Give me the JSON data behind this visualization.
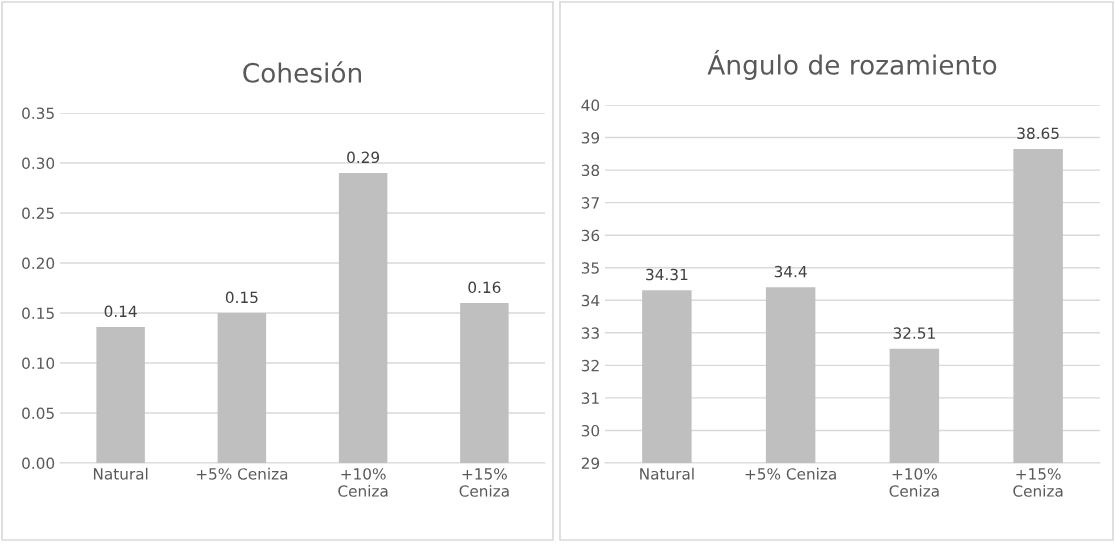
{
  "chart_data": [
    {
      "type": "bar",
      "title": "Cohesión",
      "categories": [
        "Natural",
        "+5% Ceniza",
        "+10%\nCeniza",
        "+15%\nCeniza"
      ],
      "values": [
        0.136,
        0.15,
        0.29,
        0.16
      ],
      "value_labels": [
        "0.14",
        "0.15",
        "0.29",
        "0.16"
      ],
      "color": "#bfbfbf",
      "ylim": [
        0,
        0.35
      ],
      "yticks": [
        {
          "value": 0,
          "label": "0.00"
        },
        {
          "value": 0.05,
          "label": "0.05"
        },
        {
          "value": 0.1,
          "label": "0.10"
        },
        {
          "value": 0.15,
          "label": "0.15"
        },
        {
          "value": 0.2,
          "label": "0.20"
        },
        {
          "value": 0.25,
          "label": "0.25"
        },
        {
          "value": 0.3,
          "label": "0.30"
        },
        {
          "value": 0.35,
          "label": "0.35"
        }
      ],
      "grid": "y"
    },
    {
      "type": "bar",
      "title": "Ángulo de rozamiento",
      "categories": [
        "Natural",
        "+5% Ceniza",
        "+10%\nCeniza",
        "+15%\nCeniza"
      ],
      "values": [
        34.31,
        34.4,
        32.51,
        38.65
      ],
      "data_labels": true,
      "color": "#bfbfbf",
      "ylim": [
        29,
        40
      ],
      "yticks": [
        29,
        30,
        31,
        32,
        33,
        34,
        35,
        36,
        37,
        38,
        39,
        40
      ],
      "grid": "y"
    }
  ]
}
